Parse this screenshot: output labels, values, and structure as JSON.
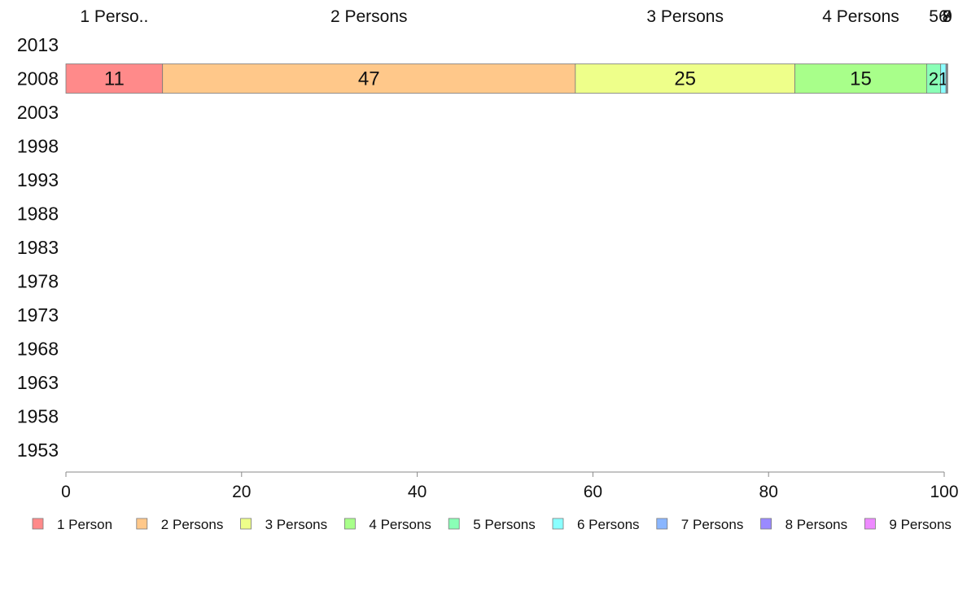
{
  "chart_data": {
    "type": "bar",
    "orientation": "horizontal",
    "stacked": true,
    "categories": [
      "2013",
      "2008",
      "2003",
      "1998",
      "1993",
      "1988",
      "1983",
      "1978",
      "1973",
      "1968",
      "1963",
      "1958",
      "1953"
    ],
    "series": [
      {
        "name": "1 Person",
        "color": "#ff8a8a",
        "values": [
          null,
          11,
          null,
          null,
          null,
          null,
          null,
          null,
          null,
          null,
          null,
          null,
          null
        ]
      },
      {
        "name": "2 Persons",
        "color": "#ffc88a",
        "values": [
          null,
          47,
          null,
          null,
          null,
          null,
          null,
          null,
          null,
          null,
          null,
          null,
          null
        ]
      },
      {
        "name": "3 Persons",
        "color": "#eeff8a",
        "values": [
          null,
          25,
          null,
          null,
          null,
          null,
          null,
          null,
          null,
          null,
          null,
          null,
          null
        ]
      },
      {
        "name": "4 Persons",
        "color": "#a8ff8a",
        "values": [
          null,
          15,
          null,
          null,
          null,
          null,
          null,
          null,
          null,
          null,
          null,
          null,
          null
        ]
      },
      {
        "name": "5 Persons",
        "color": "#8affb6",
        "values": [
          null,
          1.6,
          null,
          null,
          null,
          null,
          null,
          null,
          null,
          null,
          null,
          null,
          null
        ]
      },
      {
        "name": "6 Persons",
        "color": "#8affff",
        "values": [
          null,
          0.6,
          null,
          null,
          null,
          null,
          null,
          null,
          null,
          null,
          null,
          null,
          null
        ]
      },
      {
        "name": "7 Persons",
        "color": "#8ab6ff",
        "values": [
          null,
          0.1,
          null,
          null,
          null,
          null,
          null,
          null,
          null,
          null,
          null,
          null,
          null
        ]
      },
      {
        "name": "8 Persons",
        "color": "#9a8aff",
        "values": [
          null,
          0.05,
          null,
          null,
          null,
          null,
          null,
          null,
          null,
          null,
          null,
          null,
          null
        ]
      },
      {
        "name": "9 Persons",
        "color": "#ee8aff",
        "values": [
          null,
          0.05,
          null,
          null,
          null,
          null,
          null,
          null,
          null,
          null,
          null,
          null,
          null
        ]
      }
    ],
    "data_labels": [
      "11",
      "47",
      "25",
      "15",
      "2",
      "1"
    ],
    "top_labels": [
      "1 Perso..",
      "2 Persons",
      "3 Persons",
      "4 Persons",
      "5",
      "6",
      "7",
      "8",
      "9"
    ],
    "xlim": [
      0,
      100
    ],
    "x_ticks": [
      "0",
      "20",
      "40",
      "60",
      "80",
      "100"
    ],
    "grid": false,
    "legend_position": "bottom"
  }
}
